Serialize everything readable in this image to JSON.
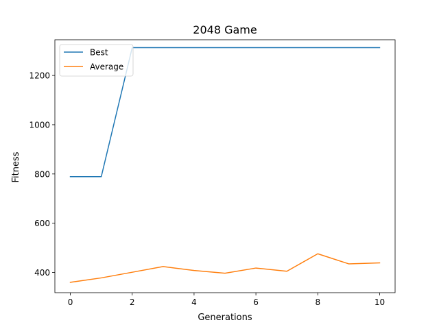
{
  "chart_data": {
    "type": "line",
    "title": "2048 Game",
    "xlabel": "Generations",
    "ylabel": "Fitness",
    "xlim": [
      -0.5,
      10.5
    ],
    "ylim": [
      318,
      1345
    ],
    "x_ticks": [
      0,
      2,
      4,
      6,
      8,
      10
    ],
    "y_ticks": [
      400,
      600,
      800,
      1000,
      1200
    ],
    "grid": false,
    "legend_position": "top-left",
    "x": [
      0,
      1,
      2,
      3,
      4,
      5,
      6,
      7,
      8,
      9,
      10
    ],
    "series": [
      {
        "name": "Best",
        "color": "#1f77b4",
        "values": [
          789,
          789,
          1313,
          1313,
          1313,
          1313,
          1313,
          1313,
          1313,
          1313,
          1313
        ]
      },
      {
        "name": "Average",
        "color": "#ff7f0e",
        "values": [
          360,
          378,
          401,
          424,
          408,
          397,
          418,
          405,
          476,
          435,
          439
        ]
      }
    ]
  }
}
